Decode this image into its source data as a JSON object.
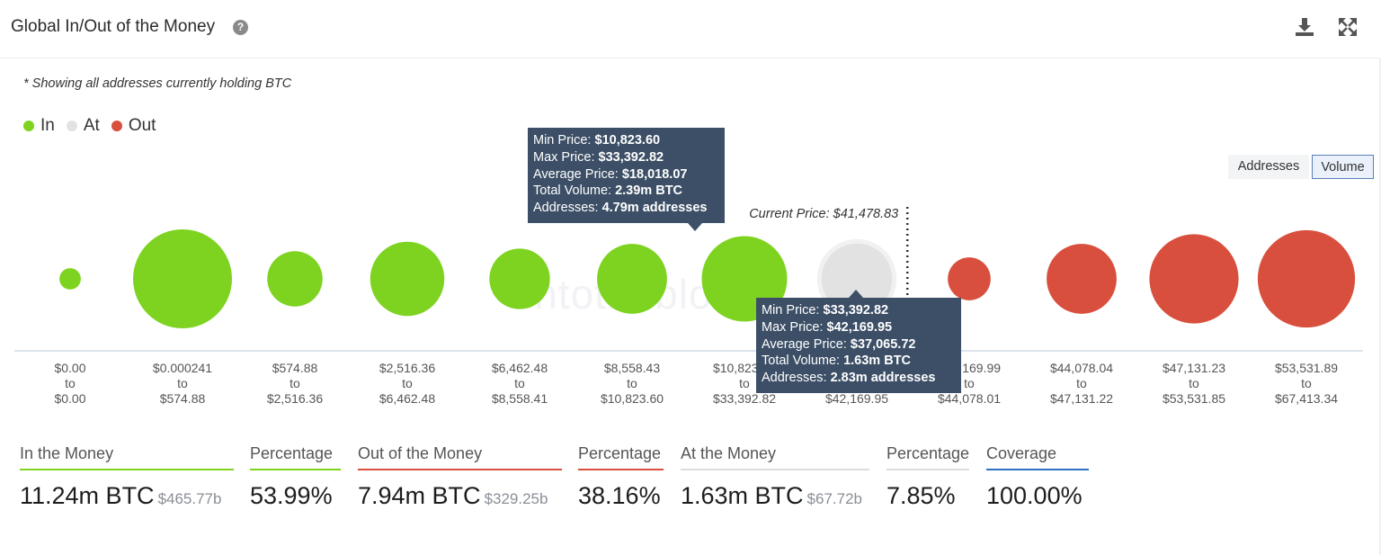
{
  "title": "Global In/Out of the Money",
  "note": "* Showing all addresses currently holding BTC",
  "legend": [
    {
      "label": "In",
      "color": "#7ed321"
    },
    {
      "label": "At",
      "color": "#e2e2e2"
    },
    {
      "label": "Out",
      "color": "#d94f3d"
    }
  ],
  "toggles": {
    "addresses": "Addresses",
    "volume": "Volume"
  },
  "current_price_label": "Current Price: $41,478.83",
  "watermark": "intotheblock",
  "chart_data": {
    "type": "scatter",
    "title": "Global In/Out of the Money",
    "current_price": 41478.83,
    "categories": [
      {
        "from": "$0.00",
        "to": "$0.00",
        "status": "In",
        "volume_btc": 0.15
      },
      {
        "from": "$0.000241",
        "to": "$574.88",
        "status": "In",
        "volume_btc": 3.2
      },
      {
        "from": "$574.88",
        "to": "$2,516.36",
        "status": "In",
        "volume_btc": 1.0
      },
      {
        "from": "$2,516.36",
        "to": "$6,462.48",
        "status": "In",
        "volume_btc": 1.8
      },
      {
        "from": "$6,462.48",
        "to": "$8,558.41",
        "status": "In",
        "volume_btc": 1.2
      },
      {
        "from": "$8,558.43",
        "to": "$10,823.60",
        "status": "In",
        "volume_btc": 1.6
      },
      {
        "from": "$10,823.60",
        "to": "$33,392.82",
        "status": "In",
        "volume_btc": 2.39
      },
      {
        "from": "$33,392.82",
        "to": "$42,169.95",
        "status": "At",
        "volume_btc": 1.63
      },
      {
        "from": "$42,169.99",
        "to": "$44,078.01",
        "status": "Out",
        "volume_btc": 0.6
      },
      {
        "from": "$44,078.04",
        "to": "$47,131.22",
        "status": "Out",
        "volume_btc": 1.6
      },
      {
        "from": "$47,131.23",
        "to": "$53,531.85",
        "status": "Out",
        "volume_btc": 2.6
      },
      {
        "from": "$53,531.89",
        "to": "$67,413.34",
        "status": "Out",
        "volume_btc": 3.1
      }
    ],
    "tooltips": [
      {
        "min_price": "$10,823.60",
        "max_price": "$33,392.82",
        "avg_price": "$18,018.07",
        "total_volume": "2.39m BTC",
        "addresses": "4.79m addresses"
      },
      {
        "min_price": "$33,392.82",
        "max_price": "$42,169.95",
        "avg_price": "$37,065.72",
        "total_volume": "1.63m BTC",
        "addresses": "2.83m addresses"
      }
    ]
  },
  "tooltip_labels": {
    "min": "Min Price: ",
    "max": "Max Price: ",
    "avg": "Average Price: ",
    "vol": "Total Volume: ",
    "addr": "Addresses: "
  },
  "stats": [
    {
      "label": "In the Money",
      "value": "11.24m BTC",
      "sub": "$465.77b",
      "color": "#7ed321"
    },
    {
      "label": "Percentage",
      "value": "53.99%",
      "sub": "",
      "color": "#7ed321"
    },
    {
      "label": "Out of the Money",
      "value": "7.94m BTC",
      "sub": "$329.25b",
      "color": "#d94f3d"
    },
    {
      "label": "Percentage",
      "value": "38.16%",
      "sub": "",
      "color": "#d94f3d"
    },
    {
      "label": "At the Money",
      "value": "1.63m BTC",
      "sub": "$67.72b",
      "color": "#dcdcdc"
    },
    {
      "label": "Percentage",
      "value": "7.85%",
      "sub": "",
      "color": "#dcdcdc"
    },
    {
      "label": "Coverage",
      "value": "100.00%",
      "sub": "",
      "color": "#2f6fc4"
    }
  ]
}
